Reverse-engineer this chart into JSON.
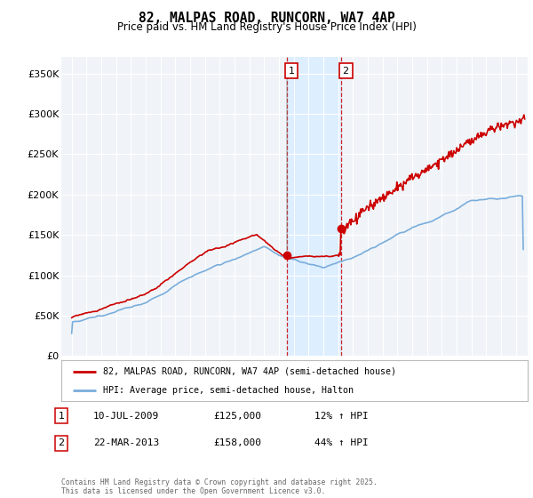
{
  "title": "82, MALPAS ROAD, RUNCORN, WA7 4AP",
  "subtitle": "Price paid vs. HM Land Registry's House Price Index (HPI)",
  "ylabel_ticks": [
    "£0",
    "£50K",
    "£100K",
    "£150K",
    "£200K",
    "£250K",
    "£300K",
    "£350K"
  ],
  "ytick_values": [
    0,
    50000,
    100000,
    150000,
    200000,
    250000,
    300000,
    350000
  ],
  "ylim": [
    0,
    370000
  ],
  "sale1_x": 2009.54,
  "sale1_y": 125000,
  "sale2_x": 2013.21,
  "sale2_y": 158000,
  "sale1_date": "10-JUL-2009",
  "sale1_price": 125000,
  "sale1_pct": "12% ↑ HPI",
  "sale2_date": "22-MAR-2013",
  "sale2_price": 158000,
  "sale2_pct": "44% ↑ HPI",
  "property_label": "82, MALPAS ROAD, RUNCORN, WA7 4AP (semi-detached house)",
  "hpi_label": "HPI: Average price, semi-detached house, Halton",
  "footer": "Contains HM Land Registry data © Crown copyright and database right 2025.\nThis data is licensed under the Open Government Licence v3.0.",
  "red_color": "#cc0000",
  "blue_color": "#7aaddb",
  "shade_color": "#ddeeff",
  "background_color": "#f0f4f8",
  "grid_color": "#ffffff",
  "xlim_left": 1994.3,
  "xlim_right": 2025.8
}
